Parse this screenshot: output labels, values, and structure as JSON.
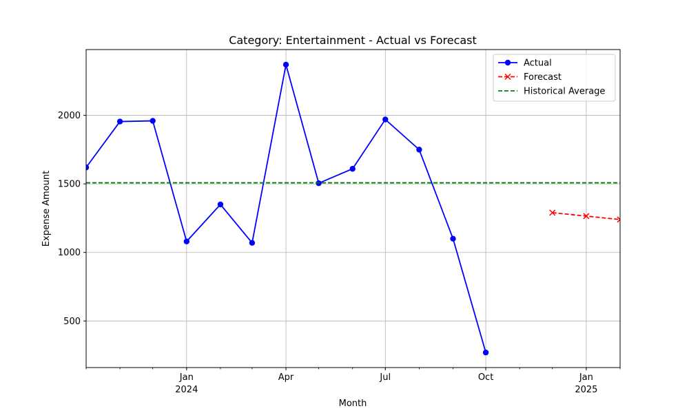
{
  "chart_data": {
    "type": "line",
    "title": "Category: Entertainment - Actual vs Forecast",
    "xlabel": "Month",
    "ylabel": "Expense Amount",
    "xlim": [
      "2023-10-01",
      "2025-02-01"
    ],
    "ylim": [
      160,
      2480
    ],
    "grid": true,
    "legend_position": "top-right",
    "x_ticks": [
      {
        "date": "2024-01-01",
        "label": "Jan",
        "sublabel": "2024",
        "major": true
      },
      {
        "date": "2024-04-01",
        "label": "Apr",
        "sublabel": "",
        "major": true
      },
      {
        "date": "2024-07-01",
        "label": "Jul",
        "sublabel": "",
        "major": true
      },
      {
        "date": "2024-10-01",
        "label": "Oct",
        "sublabel": "",
        "major": true
      },
      {
        "date": "2025-01-01",
        "label": "Jan",
        "sublabel": "2025",
        "major": true
      }
    ],
    "y_ticks": [
      500,
      1000,
      1500,
      2000
    ],
    "series": [
      {
        "name": "Actual",
        "color": "#0000ff",
        "style": "solid",
        "marker": "circle",
        "x": [
          "2023-10-01",
          "2023-11-01",
          "2023-12-01",
          "2024-01-01",
          "2024-02-01",
          "2024-03-01",
          "2024-04-01",
          "2024-05-01",
          "2024-06-01",
          "2024-07-01",
          "2024-08-01",
          "2024-09-01",
          "2024-10-01",
          "2024-11-01"
        ],
        "y": [
          1620,
          1955,
          1960,
          1080,
          1350,
          1070,
          2370,
          1505,
          1610,
          1970,
          1750,
          1100,
          270,
          null
        ]
      },
      {
        "name": "Forecast",
        "color": "#ff0000",
        "style": "dashed",
        "marker": "x",
        "x": [
          "2024-12-01",
          "2025-01-01",
          "2025-02-01"
        ],
        "y": [
          1290,
          1265,
          1240
        ]
      },
      {
        "name": "Historical Average",
        "color": "#008000",
        "style": "dashed",
        "marker": "none",
        "y_constant": 1508
      }
    ]
  }
}
